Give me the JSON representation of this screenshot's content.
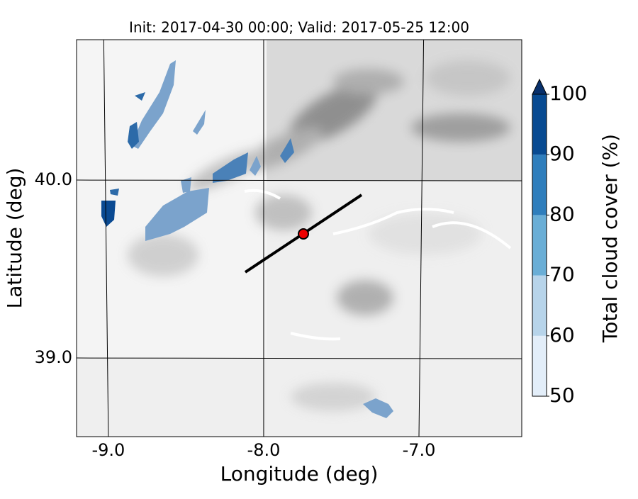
{
  "map": {
    "title": "Init: 2017-04-30 00:00; Valid: 2017-05-25 12:00",
    "xlabel": "Longitude (deg)",
    "ylabel": "Latitude (deg)",
    "xlim": [
      -9.205,
      -6.338
    ],
    "ylim": [
      38.558,
      40.789
    ],
    "xticks": [
      {
        "value": -9,
        "label": "-9.0"
      },
      {
        "value": -8,
        "label": "-8.0"
      },
      {
        "value": -7,
        "label": "-7.0"
      }
    ],
    "yticks": [
      {
        "value": 39,
        "label": "39.0"
      },
      {
        "value": 40,
        "label": "40.0"
      }
    ],
    "grid": true,
    "colorbar": {
      "label": "Total cloud cover (%)",
      "lim": [
        50,
        100
      ],
      "ticks": [
        50,
        60,
        70,
        80,
        90,
        100
      ],
      "colors": [
        "#e3eef9",
        "#b7d4ea",
        "#6aaed6",
        "#2f7ebc",
        "#084a91"
      ],
      "extend_color": "#08306b"
    }
  }
}
